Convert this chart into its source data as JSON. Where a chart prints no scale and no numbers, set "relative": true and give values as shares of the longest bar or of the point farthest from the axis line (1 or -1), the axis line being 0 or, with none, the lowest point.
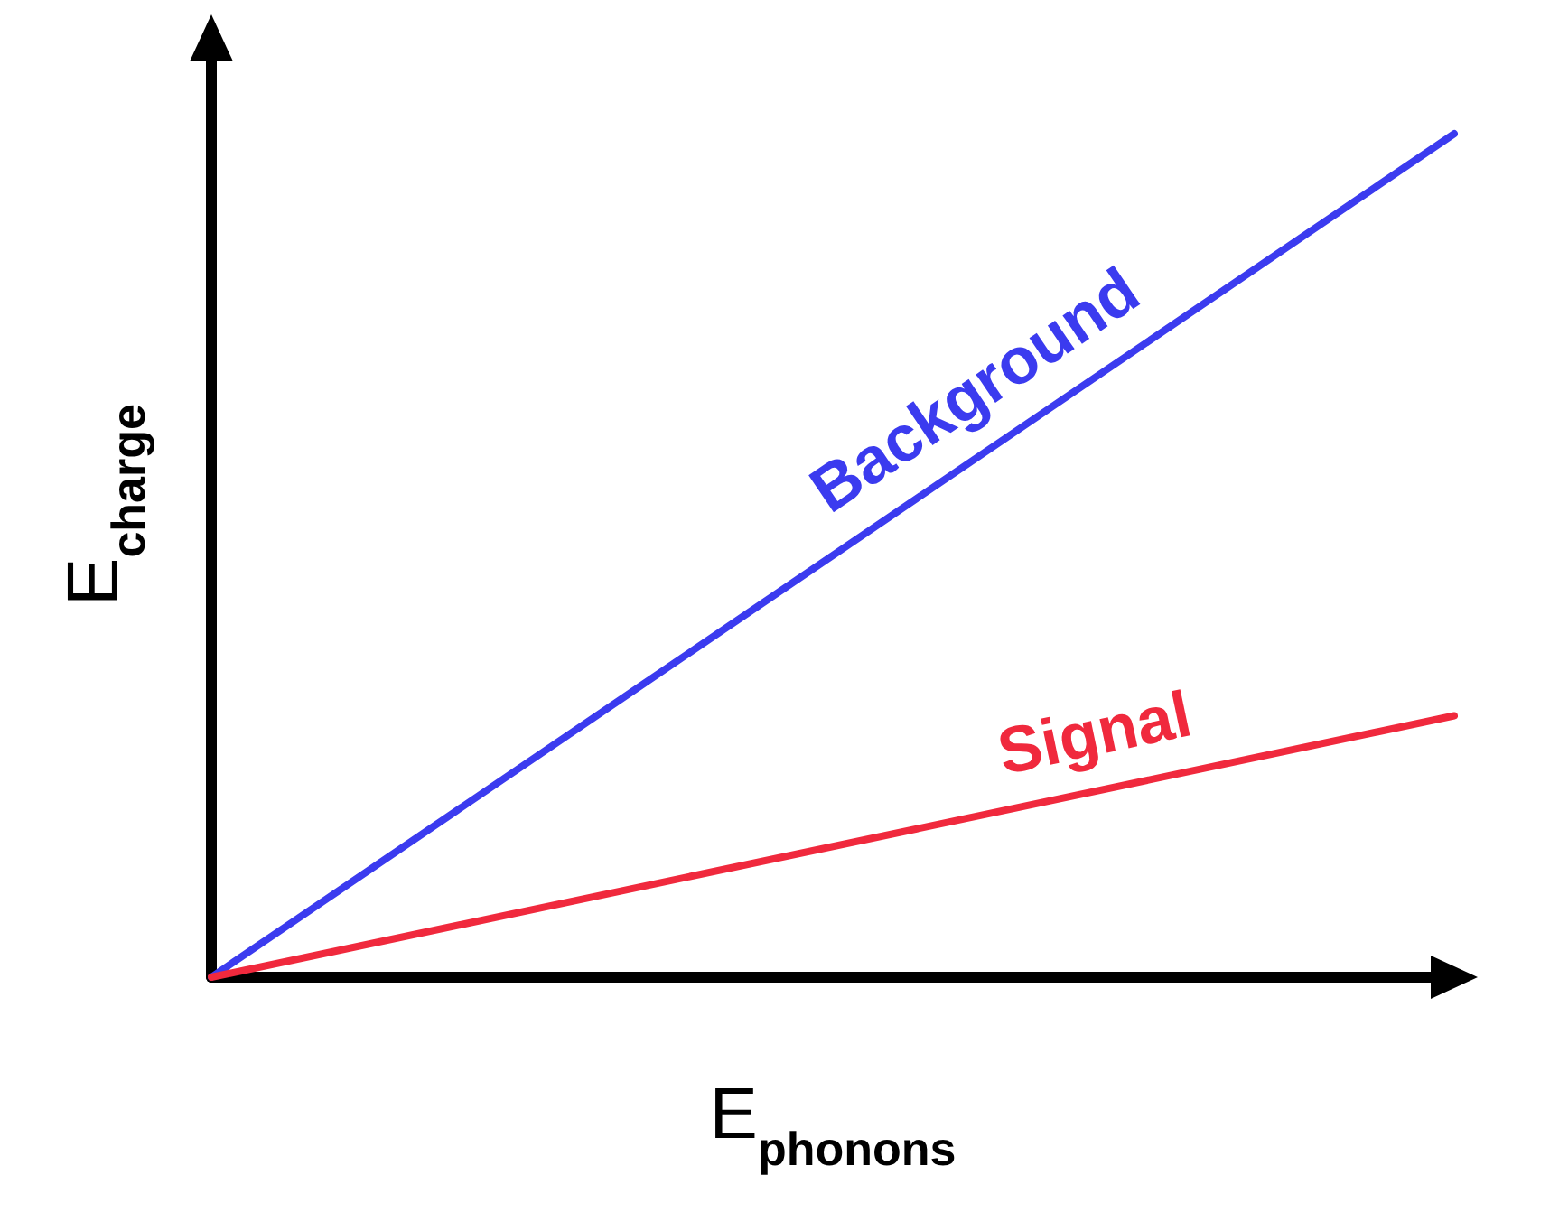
{
  "chart_data": {
    "type": "line",
    "relative": true,
    "xlabel": "E$_{phonons}$",
    "ylabel": "E$_{charge}$",
    "categories": [
      null,
      null
    ],
    "series": [
      {
        "name": "Background",
        "color": "#3b3bef",
        "values": [
          0,
          1
        ]
      },
      {
        "name": "Signal",
        "color": "#f0293d",
        "values": [
          0,
          0.31
        ]
      }
    ],
    "legend": false,
    "grid": false,
    "marker": "none",
    "line_style": "solid"
  }
}
